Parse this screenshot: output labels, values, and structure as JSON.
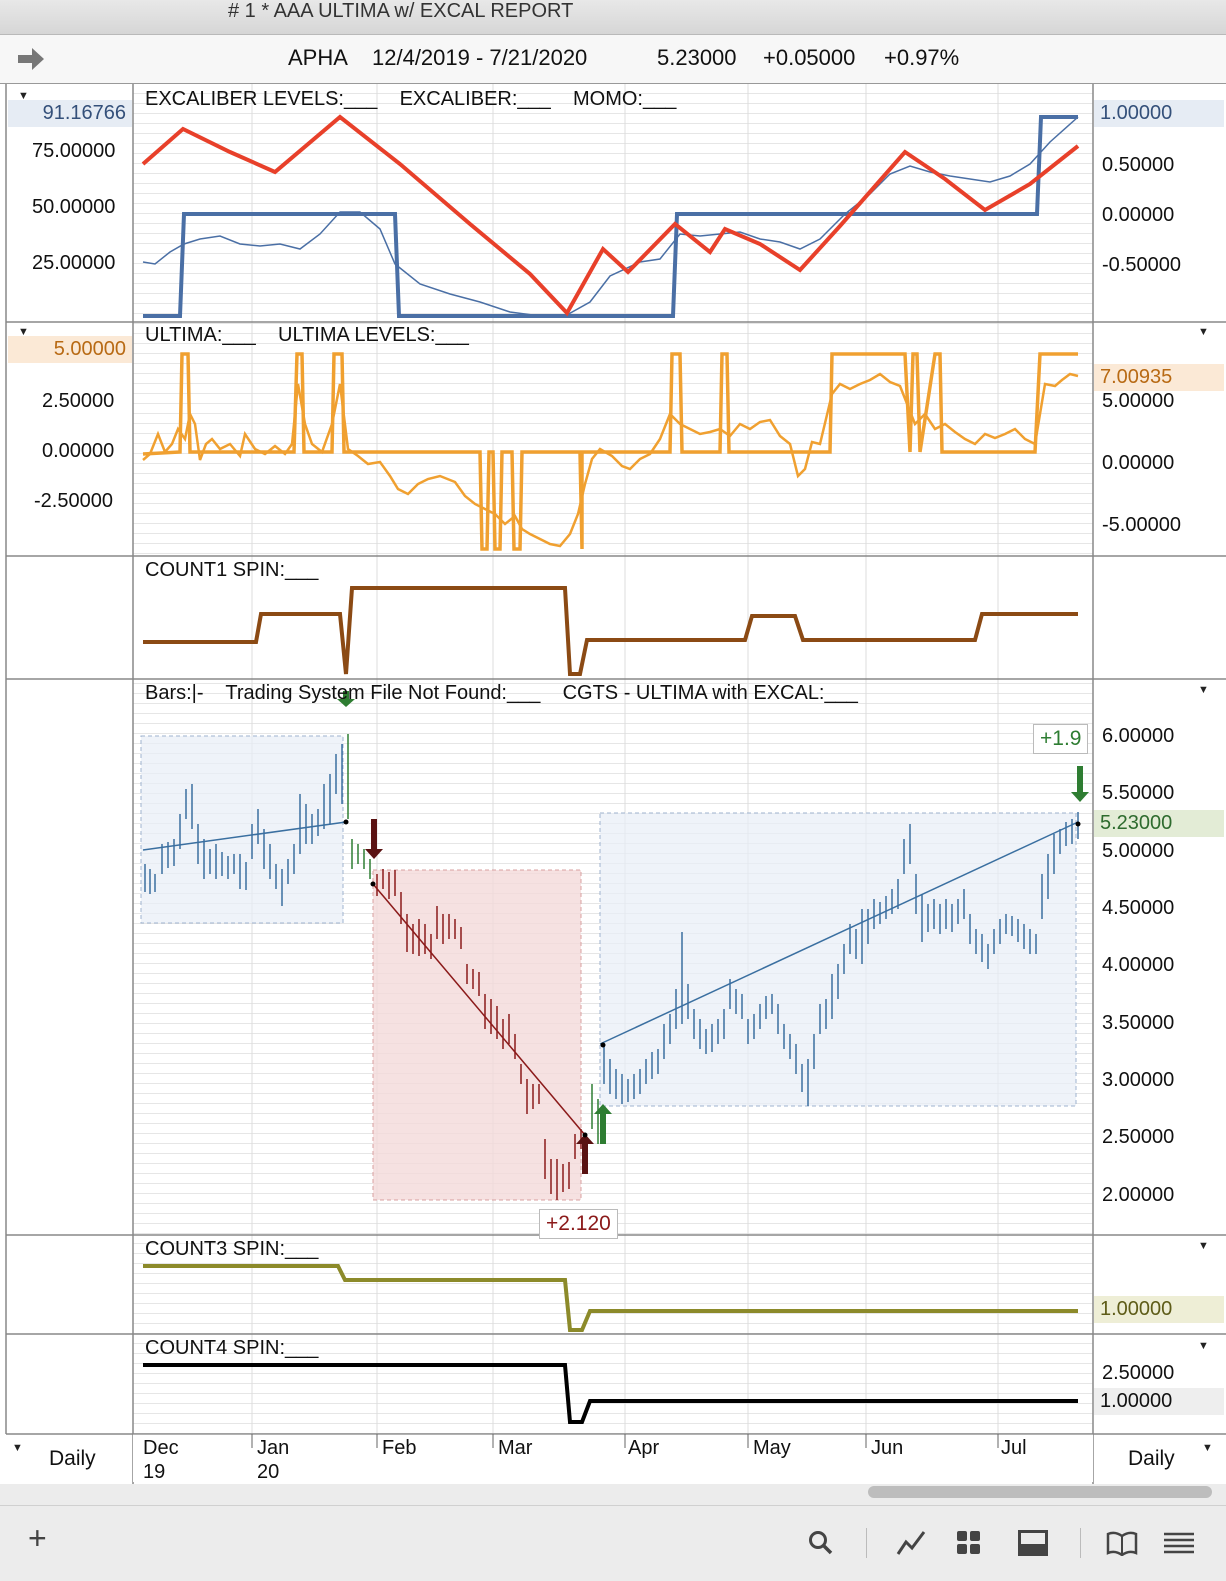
{
  "window": {
    "title": "# 1 * AAA ULTIMA w/ EXCAL REPORT"
  },
  "quote": {
    "symbol": "APHA",
    "date_range": "12/4/2019 - 7/21/2020",
    "last": "5.23000",
    "change": "+0.05000",
    "pct_change": "+0.97%"
  },
  "panels": {
    "excaliber": {
      "title": "EXCALIBER LEVELS:___    EXCALIBER:___    MOMO:___",
      "left_value": "91.16766",
      "left_ticks": [
        "75.00000",
        "50.00000",
        "25.00000"
      ],
      "right_value": "1.00000",
      "right_ticks": [
        "0.50000",
        "0.00000",
        "-0.50000"
      ]
    },
    "ultima": {
      "title": "ULTIMA:___    ULTIMA LEVELS:___",
      "left_value": "5.00000",
      "left_ticks": [
        "2.50000",
        "0.00000",
        "-2.50000"
      ],
      "right_value": "7.00935",
      "right_ticks": [
        "5.00000",
        "0.00000",
        "-5.00000"
      ]
    },
    "count1": {
      "title": "COUNT1 SPIN:___"
    },
    "price": {
      "title": "Bars:|-    Trading System File Not Found:___    CGTS - ULTIMA with EXCAL:___",
      "right_ticks": [
        "6.00000",
        "5.50000",
        "5.00000",
        "4.50000",
        "4.00000",
        "3.50000",
        "3.00000",
        "2.50000",
        "2.00000"
      ],
      "last_value": "5.23000",
      "trade_tag_1": "+2.120",
      "trade_tag_2": "+1.9"
    },
    "count3": {
      "title": "COUNT3 SPIN:___",
      "right_value": "1.00000"
    },
    "count4": {
      "title": "COUNT4 SPIN:___",
      "right_ticks": [
        "2.50000"
      ],
      "right_value": "1.00000"
    }
  },
  "time_axis": {
    "months": [
      "Dec",
      "Jan",
      "Feb",
      "Mar",
      "Apr",
      "May",
      "Jun",
      "Jul"
    ],
    "years": [
      "19",
      "20"
    ],
    "period_left": "Daily",
    "period_right": "Daily"
  },
  "colors": {
    "momo": "#e8402a",
    "excaliber": "#4a6fa5",
    "ultima": "#f0a030",
    "count1": "#8b4a14",
    "count3": "#8c8a2a",
    "count4": "#000000",
    "bars_up": "#3a6fa0",
    "bars_down": "#8b1a1a",
    "signal_green": "#2e7d32"
  },
  "toolbar": {
    "icons": [
      "add-icon",
      "search-icon",
      "trend-icon",
      "grid-icon",
      "panel-icon",
      "book-icon",
      "list-icon"
    ]
  }
}
